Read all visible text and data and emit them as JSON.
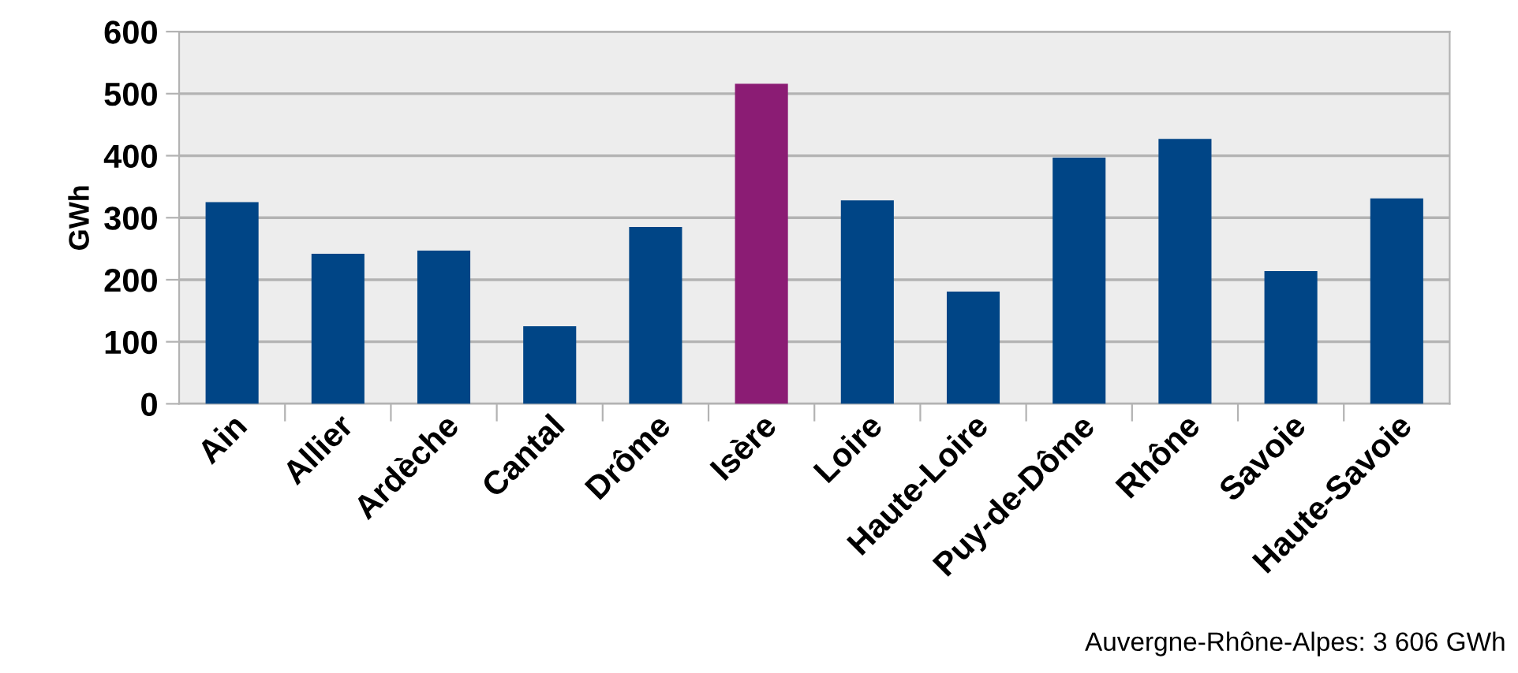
{
  "chart_data": {
    "type": "bar",
    "ylabel": "GWh",
    "categories": [
      "Ain",
      "Allier",
      "Ardèche",
      "Cantal",
      "Drôme",
      "Isère",
      "Loire",
      "Haute-Loire",
      "Puy-de-Dôme",
      "Rhône",
      "Savoie",
      "Haute-Savoie"
    ],
    "values": [
      325,
      242,
      247,
      125,
      285,
      516,
      328,
      181,
      397,
      427,
      214,
      331
    ],
    "colors": [
      "#004586",
      "#004586",
      "#004586",
      "#004586",
      "#004586",
      "#8b1c74",
      "#004586",
      "#004586",
      "#004586",
      "#004586",
      "#004586",
      "#004586"
    ],
    "ylim": [
      0,
      600
    ],
    "yticks": [
      0,
      100,
      200,
      300,
      400,
      500,
      600
    ],
    "grid": "y",
    "legend": false,
    "annotations": [
      "Auvergne-Rhône-Alpes: 3 606 GWh"
    ]
  }
}
